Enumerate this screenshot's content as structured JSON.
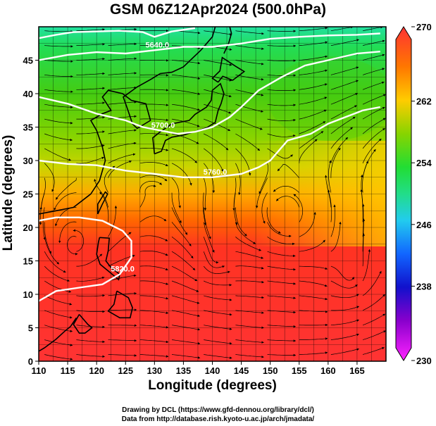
{
  "chart_data": {
    "type": "heatmap",
    "title": "GSM 06Z12Apr2024 (500.0hPa)",
    "xlabel": "Longitude (degrees)",
    "ylabel": "Latitude  (degrees)",
    "xlim": [
      110,
      170
    ],
    "ylim": [
      0,
      50
    ],
    "x_ticks": [
      110,
      115,
      120,
      125,
      130,
      135,
      140,
      145,
      150,
      155,
      160,
      165
    ],
    "y_ticks": [
      0,
      5,
      10,
      15,
      20,
      25,
      30,
      35,
      40,
      45
    ],
    "grid": true,
    "colorbar": {
      "position": "right",
      "range": [
        230,
        270
      ],
      "ticks": [
        230,
        238,
        246,
        254,
        262,
        270
      ],
      "colors": [
        "#ff22ff",
        "#8800cc",
        "#1111cc",
        "#1188ff",
        "#22ddee",
        "#22dd66",
        "#44cc11",
        "#aadd00",
        "#ffcc00",
        "#ff8800",
        "#ff2222",
        "#ff4444"
      ]
    },
    "contours": [
      {
        "label": "5820.0",
        "points": [
          [
            110,
            9
          ],
          [
            113,
            10.5
          ],
          [
            117,
            11
          ],
          [
            121,
            11.5
          ],
          [
            124,
            13
          ],
          [
            126,
            15.5
          ],
          [
            126,
            18
          ],
          [
            124.5,
            19.5
          ],
          [
            121,
            21
          ],
          [
            117,
            21.5
          ],
          [
            113,
            21.5
          ],
          [
            110,
            21
          ]
        ]
      },
      {
        "label": "5760.0",
        "points": [
          [
            110,
            30
          ],
          [
            115,
            29.5
          ],
          [
            120,
            29.3
          ],
          [
            125,
            28.5
          ],
          [
            130,
            28
          ],
          [
            135,
            27.5
          ],
          [
            140,
            27.5
          ],
          [
            145,
            28
          ],
          [
            148,
            29
          ],
          [
            150,
            30
          ],
          [
            151,
            31
          ],
          [
            153,
            33
          ],
          [
            155,
            33.5
          ],
          [
            157,
            34
          ],
          [
            160,
            35.5
          ],
          [
            163,
            36.5
          ],
          [
            166,
            37.5
          ],
          [
            169,
            38
          ]
        ]
      },
      {
        "label": "5700.0",
        "points": [
          [
            110,
            39.5
          ],
          [
            115,
            38.5
          ],
          [
            120,
            37
          ],
          [
            125,
            36
          ],
          [
            128,
            35
          ],
          [
            131,
            34.5
          ],
          [
            134,
            34
          ],
          [
            137,
            34.3
          ],
          [
            140,
            35
          ],
          [
            143,
            36.5
          ],
          [
            145,
            38
          ],
          [
            148,
            40.5
          ],
          [
            152,
            42.5
          ],
          [
            156,
            44.2
          ],
          [
            160,
            45
          ],
          [
            165,
            46
          ],
          [
            169,
            46.3
          ]
        ]
      },
      {
        "label": "5640.0",
        "points": [
          [
            110,
            45
          ],
          [
            115,
            45.8
          ],
          [
            120,
            46.2
          ],
          [
            125,
            46
          ],
          [
            130,
            46.5
          ],
          [
            135,
            47
          ],
          [
            140,
            47
          ],
          [
            145,
            47.5
          ],
          [
            150,
            48.2
          ],
          [
            155,
            48.5
          ],
          [
            160,
            48.7
          ],
          [
            165,
            48.8
          ],
          [
            169,
            49
          ]
        ]
      },
      {
        "label": "",
        "points": [
          [
            110,
            48.3
          ],
          [
            113,
            48.8
          ],
          [
            116,
            49.2
          ],
          [
            120,
            49.3
          ],
          [
            124,
            49.4
          ],
          [
            128,
            49.2
          ],
          [
            130,
            48.5
          ],
          [
            133,
            49.3
          ],
          [
            137,
            49.8
          ]
        ]
      }
    ],
    "temperature_field": [
      {
        "lat": 50,
        "value": 250
      },
      {
        "lat": 45,
        "value": 252
      },
      {
        "lat": 40,
        "value": 254
      },
      {
        "lat": 35,
        "value": 256
      },
      {
        "lat": 30,
        "value": 259
      },
      {
        "lat": 25,
        "value": 262
      },
      {
        "lat": 20,
        "value": 265
      },
      {
        "lat": 15,
        "value": 266
      },
      {
        "lat": 10,
        "value": 266
      },
      {
        "lat": 5,
        "value": 266
      },
      {
        "lat": 0,
        "value": 267
      }
    ],
    "flow": "westerly streamlines with anticyclonic circulations near 115E 17N and 155-165E 10-25N"
  },
  "footer": {
    "line1": "Drawing by DCL (https://www.gfd-dennou.org/library/dcl/)",
    "line2": "Data from http://database.rish.kyoto-u.ac.jp/arch/jmadata/"
  }
}
